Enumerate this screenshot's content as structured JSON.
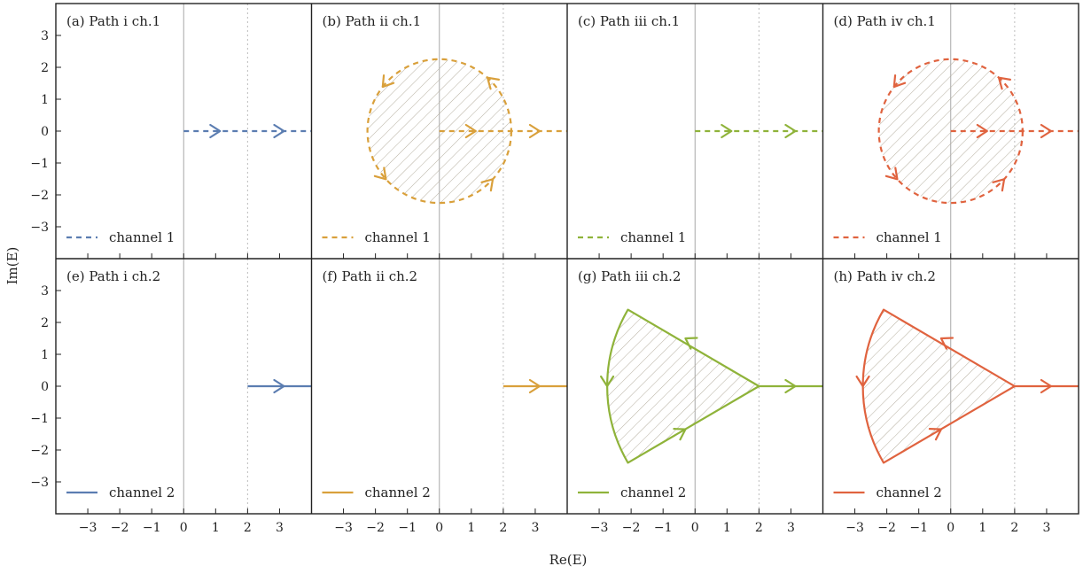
{
  "figure": {
    "xlabel": "Re(E)",
    "ylabel": "Im(E)",
    "xticks": [
      "−3",
      "−2",
      "−1",
      "0",
      "1",
      "2",
      "3"
    ],
    "yticks": [
      "3",
      "2",
      "1",
      "0",
      "−1",
      "−2",
      "−3"
    ]
  },
  "colors": {
    "blue": "#5b7db1",
    "gold": "#d9a03b",
    "green": "#8fb33a",
    "red": "#e0633f",
    "hatch": "#b5ae9f",
    "axis": "#a8a8a8",
    "dotted": "#bdbdbd"
  },
  "chart_data": [
    {
      "panel": "a",
      "title": "(a) Path i ch.1",
      "type": "line",
      "legend": "channel 1",
      "dashed": true,
      "color": "blue",
      "xlim": [
        -4,
        4
      ],
      "ylim": [
        -4,
        4
      ],
      "branch_point": 2,
      "paths": [
        {
          "points": [
            [
              0,
              0
            ],
            [
              4,
              0
            ]
          ],
          "arrows": [
            [
              1,
              0
            ],
            [
              3,
              0
            ]
          ]
        }
      ]
    },
    {
      "panel": "b",
      "title": "(b) Path ii ch.1",
      "type": "line",
      "legend": "channel 1",
      "dashed": true,
      "color": "gold",
      "xlim": [
        -4,
        4
      ],
      "ylim": [
        -4,
        4
      ],
      "branch_point": 2,
      "circle": {
        "center": [
          0,
          0
        ],
        "radius": 2.25,
        "hatched": true,
        "arrows_deg": [
          48,
          142,
          222,
          318
        ]
      },
      "paths": [
        {
          "points": [
            [
              0,
              0
            ],
            [
              4,
              0
            ]
          ],
          "arrows": [
            [
              1,
              0
            ],
            [
              3,
              0
            ]
          ]
        }
      ]
    },
    {
      "panel": "c",
      "title": "(c) Path iii ch.1",
      "type": "line",
      "legend": "channel 1",
      "dashed": true,
      "color": "green",
      "xlim": [
        -4,
        4
      ],
      "ylim": [
        -4,
        4
      ],
      "branch_point": 2,
      "paths": [
        {
          "points": [
            [
              0,
              0
            ],
            [
              4,
              0
            ]
          ],
          "arrows": [
            [
              1,
              0
            ],
            [
              3,
              0
            ]
          ]
        }
      ]
    },
    {
      "panel": "d",
      "title": "(d) Path iv ch.1",
      "type": "line",
      "legend": "channel 1",
      "dashed": true,
      "color": "red",
      "xlim": [
        -4,
        4
      ],
      "ylim": [
        -4,
        4
      ],
      "branch_point": 2,
      "circle": {
        "center": [
          0,
          0
        ],
        "radius": 2.25,
        "hatched": true,
        "arrows_deg": [
          48,
          142,
          222,
          318
        ]
      },
      "paths": [
        {
          "points": [
            [
              0,
              0
            ],
            [
              4,
              0
            ]
          ],
          "arrows": [
            [
              1,
              0
            ],
            [
              3,
              0
            ]
          ]
        }
      ]
    },
    {
      "panel": "e",
      "title": "(e) Path i ch.2",
      "type": "line",
      "legend": "channel 2",
      "dashed": false,
      "color": "blue",
      "xlim": [
        -4,
        4
      ],
      "ylim": [
        -4,
        4
      ],
      "branch_point": 2,
      "paths": [
        {
          "points": [
            [
              2,
              0
            ],
            [
              4,
              0
            ]
          ],
          "arrows": [
            [
              3,
              0
            ]
          ]
        }
      ]
    },
    {
      "panel": "f",
      "title": "(f) Path ii ch.2",
      "type": "line",
      "legend": "channel 2",
      "dashed": false,
      "color": "gold",
      "xlim": [
        -4,
        4
      ],
      "ylim": [
        -4,
        4
      ],
      "branch_point": 2,
      "paths": [
        {
          "points": [
            [
              2,
              0
            ],
            [
              4,
              0
            ]
          ],
          "arrows": [
            [
              3,
              0
            ]
          ]
        }
      ]
    },
    {
      "panel": "g",
      "title": "(g) Path iii ch.2",
      "type": "line",
      "legend": "channel 2",
      "dashed": false,
      "color": "green",
      "xlim": [
        -4,
        4
      ],
      "ylim": [
        -4,
        4
      ],
      "branch_point": 2,
      "sector": {
        "apex": [
          2,
          0
        ],
        "top": [
          -2.1,
          2.4
        ],
        "bottom": [
          -2.1,
          -2.4
        ],
        "arc_center": [
          2,
          0
        ],
        "hatched": true
      },
      "paths": [
        {
          "points": [
            [
              2,
              0
            ],
            [
              4,
              0
            ]
          ],
          "arrows": [
            [
              3,
              0
            ]
          ]
        }
      ],
      "arrows_extra": [
        [
          -0.3,
          1.5,
          "in"
        ],
        [
          -0.3,
          -1.35,
          "out"
        ],
        [
          -2.75,
          0,
          "down"
        ]
      ]
    },
    {
      "panel": "h",
      "title": "(h) Path iv ch.2",
      "type": "line",
      "legend": "channel 2",
      "dashed": false,
      "color": "red",
      "xlim": [
        -4,
        4
      ],
      "ylim": [
        -4,
        4
      ],
      "branch_point": 2,
      "sector": {
        "apex": [
          2,
          0
        ],
        "top": [
          -2.1,
          2.4
        ],
        "bottom": [
          -2.1,
          -2.4
        ],
        "arc_center": [
          2,
          0
        ],
        "hatched": true
      },
      "paths": [
        {
          "points": [
            [
              2,
              0
            ],
            [
              4,
              0
            ]
          ],
          "arrows": [
            [
              3,
              0
            ]
          ]
        }
      ],
      "arrows_extra": [
        [
          -0.3,
          1.5,
          "in"
        ],
        [
          -0.3,
          -1.35,
          "out"
        ],
        [
          -2.75,
          0,
          "down"
        ]
      ]
    }
  ]
}
